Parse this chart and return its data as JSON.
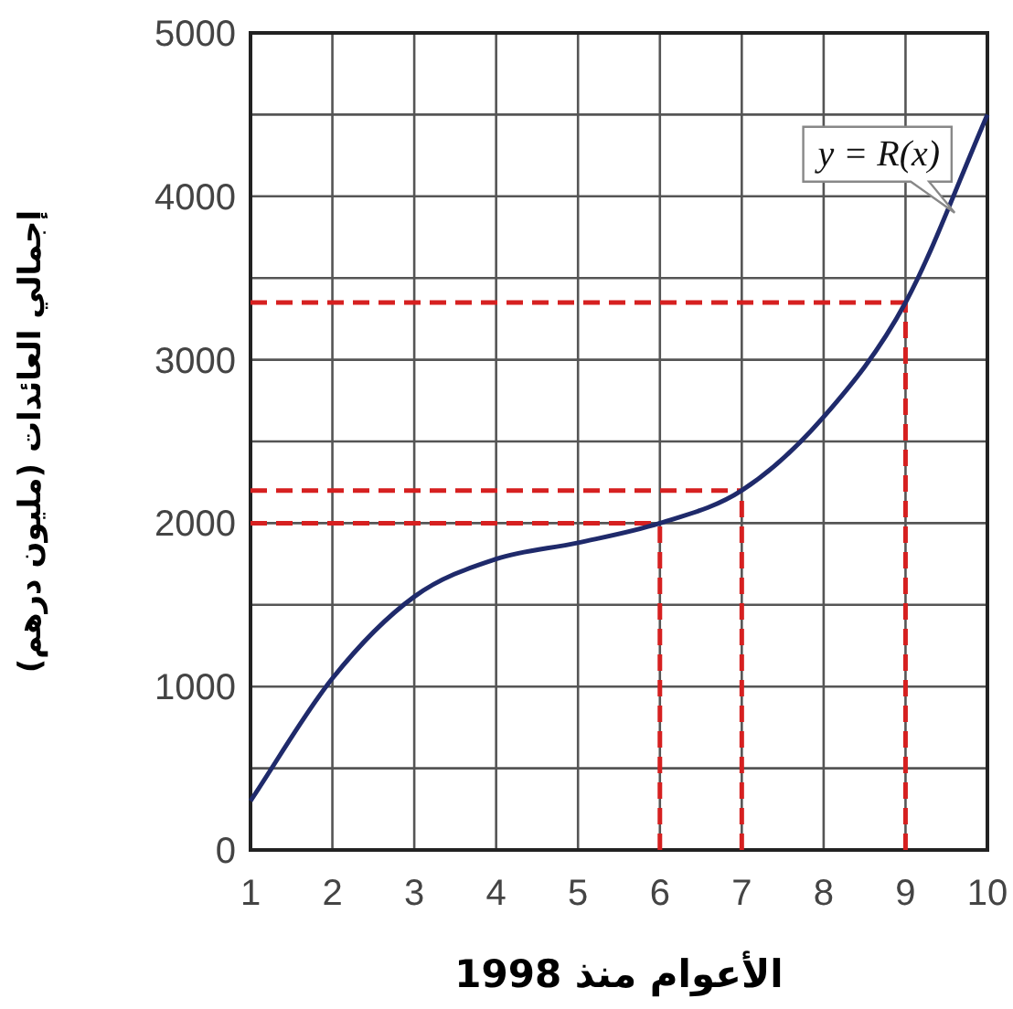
{
  "chart_data": {
    "type": "line",
    "xlabel": "الأعوام منذ 1998",
    "ylabel": "إجمالي العائدات (مليون درهم)",
    "x": [
      1,
      2,
      3,
      4,
      5,
      6,
      7,
      8,
      9,
      10
    ],
    "series": [
      {
        "color": "#1f2a6b",
        "values": [
          300,
          1050,
          1550,
          1780,
          1880,
          2000,
          2200,
          2650,
          3350,
          4500
        ]
      }
    ],
    "xlim": [
      1,
      10
    ],
    "xticks": [
      1,
      2,
      3,
      4,
      5,
      6,
      7,
      8,
      9,
      10
    ],
    "ylim": [
      0,
      5000
    ],
    "yticks": [
      0,
      1000,
      2000,
      3000,
      4000,
      5000
    ],
    "grid": true,
    "ref_lines": [
      {
        "axis": "x",
        "value": 6,
        "color": "#d62020",
        "line_style": "dashed"
      },
      {
        "axis": "x",
        "value": 7,
        "color": "#d62020",
        "line_style": "dashed"
      },
      {
        "axis": "x",
        "value": 9,
        "color": "#d62020",
        "line_style": "dashed"
      },
      {
        "axis": "y",
        "value": 2000,
        "color": "#d62020",
        "line_style": "dashed"
      },
      {
        "axis": "y",
        "value": 2200,
        "color": "#d62020",
        "line_style": "dashed"
      },
      {
        "axis": "y",
        "value": 3350,
        "color": "#d62020",
        "line_style": "dashed"
      }
    ],
    "annotations": [
      {
        "text": "y = R(x)",
        "x": 9.6,
        "y": 3900
      }
    ]
  }
}
